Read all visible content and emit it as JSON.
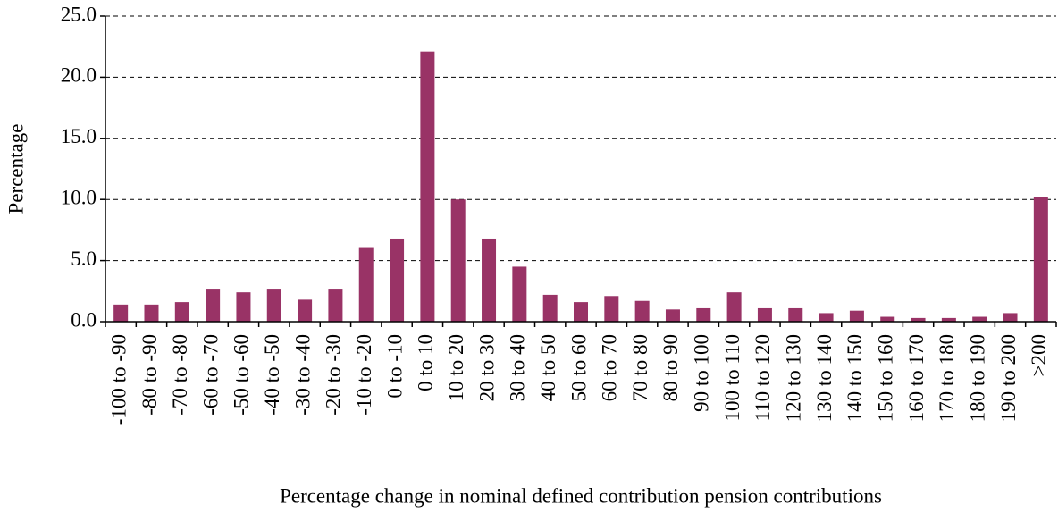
{
  "chart_data": {
    "type": "bar",
    "x_label": "Percentage change in nominal defined contribution pension contributions",
    "y_label": "Percentage",
    "categories": [
      "-100 to -90",
      "-80 to -90",
      "-70 to -80",
      "-60 to -70",
      "-50 to -60",
      "-40 to -50",
      "-30 to -40",
      "-20 to -30",
      "-10 to -20",
      "0 to -10",
      "0 to 10",
      "10 to 20",
      "20 to 30",
      "30 to 40",
      "40 to 50",
      "50 to 60",
      "60 to 70",
      "70 to 80",
      "80 to 90",
      "90 to 100",
      "100 to 110",
      "110 to 120",
      "120 to 130",
      "130 to 140",
      "140 to 150",
      "150 to 160",
      "160 to 170",
      "170 to 180",
      "180 to 190",
      "190 to 200",
      ">200"
    ],
    "values": [
      1.4,
      1.4,
      1.6,
      2.7,
      2.4,
      2.7,
      1.8,
      2.7,
      6.1,
      6.8,
      22.1,
      10.0,
      6.8,
      4.5,
      2.2,
      1.6,
      2.1,
      1.7,
      1.0,
      1.1,
      2.4,
      1.1,
      1.1,
      0.7,
      0.9,
      0.4,
      0.3,
      0.3,
      0.4,
      0.7,
      10.2
    ],
    "color": "#993366",
    "ylim": [
      0,
      25
    ],
    "yticks": [
      {
        "value": 0,
        "label": "0.0"
      },
      {
        "value": 5,
        "label": "5.0"
      },
      {
        "value": 10,
        "label": "10.0"
      },
      {
        "value": 15,
        "label": "15.0"
      },
      {
        "value": 20,
        "label": "20.0"
      },
      {
        "value": 25,
        "label": "25.0"
      }
    ],
    "grid": true
  }
}
